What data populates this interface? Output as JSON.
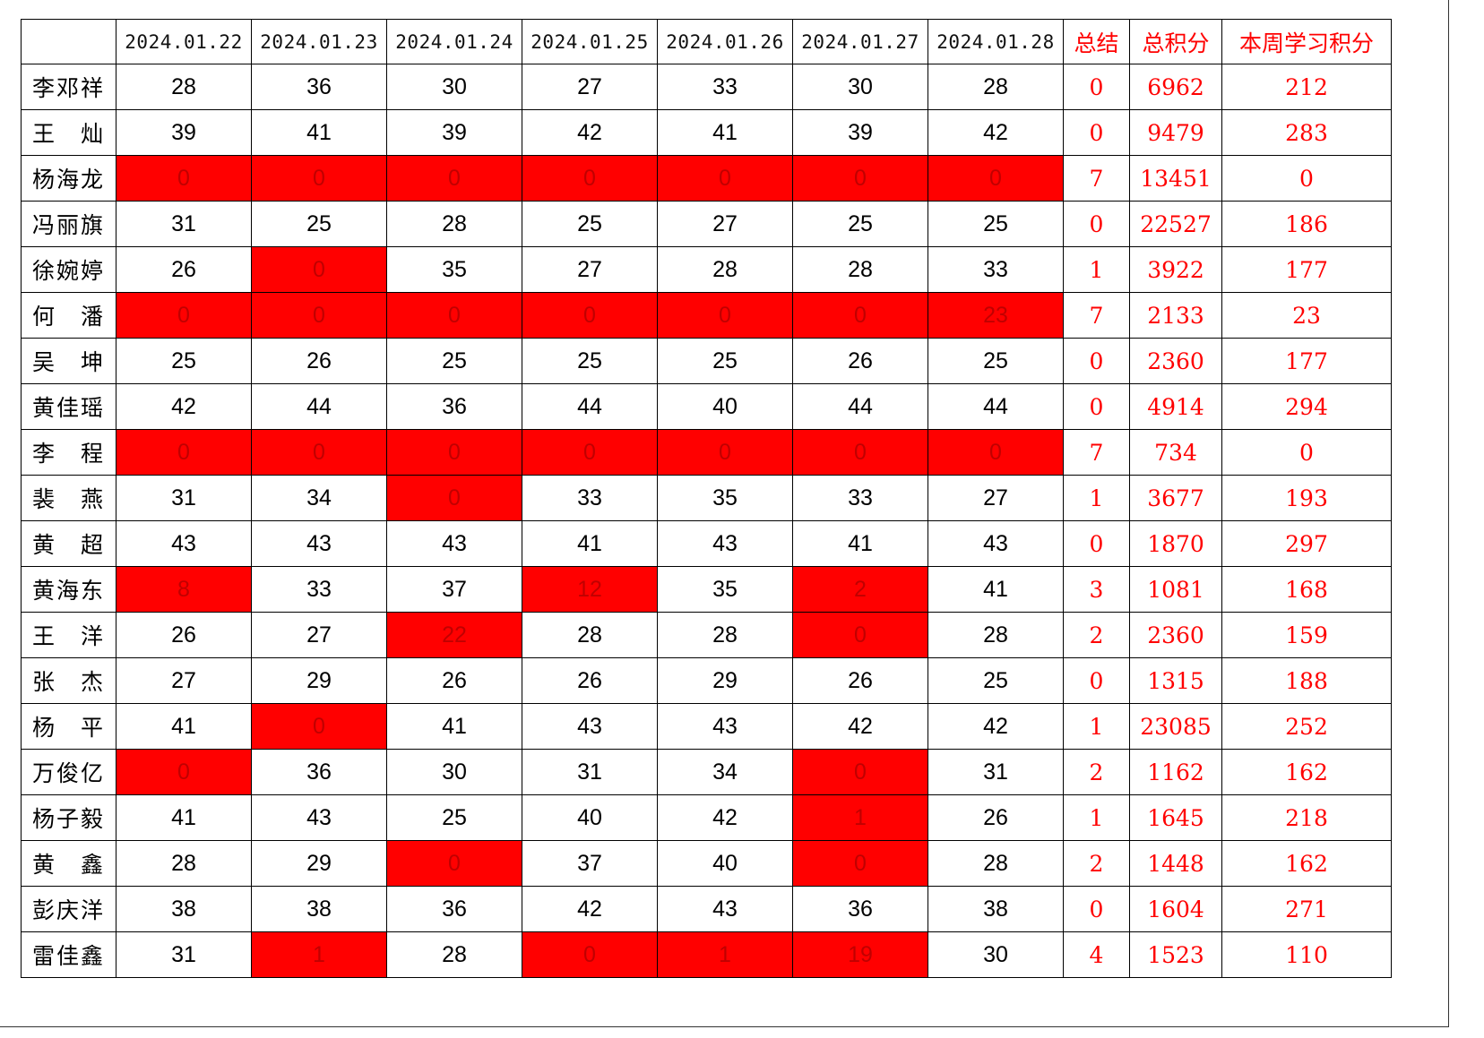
{
  "headers": {
    "dates": [
      "2024.01.22",
      "2024.01.23",
      "2024.01.24",
      "2024.01.25",
      "2024.01.26",
      "2024.01.27",
      "2024.01.28"
    ],
    "summary": "总结",
    "total": "总积分",
    "weekly": "本周学习积分"
  },
  "colors": {
    "highlight": "#ff0000",
    "accent_text": "#ff0000"
  },
  "rows": [
    {
      "name": "李邓祥",
      "days": [
        "28",
        "36",
        "30",
        "27",
        "33",
        "30",
        "28"
      ],
      "highlights": [
        false,
        false,
        false,
        false,
        false,
        false,
        false
      ],
      "summary": "0",
      "total": "6962",
      "weekly": "212"
    },
    {
      "name": "王　灿",
      "days": [
        "39",
        "41",
        "39",
        "42",
        "41",
        "39",
        "42"
      ],
      "highlights": [
        false,
        false,
        false,
        false,
        false,
        false,
        false
      ],
      "summary": "0",
      "total": "9479",
      "weekly": "283"
    },
    {
      "name": "杨海龙",
      "days": [
        "0",
        "0",
        "0",
        "0",
        "0",
        "0",
        "0"
      ],
      "highlights": [
        true,
        true,
        true,
        true,
        true,
        true,
        true
      ],
      "summary": "7",
      "total": "13451",
      "weekly": "0"
    },
    {
      "name": "冯丽旗",
      "days": [
        "31",
        "25",
        "28",
        "25",
        "27",
        "25",
        "25"
      ],
      "highlights": [
        false,
        false,
        false,
        false,
        false,
        false,
        false
      ],
      "summary": "0",
      "total": "22527",
      "weekly": "186"
    },
    {
      "name": "徐婉婷",
      "days": [
        "26",
        "0",
        "35",
        "27",
        "28",
        "28",
        "33"
      ],
      "highlights": [
        false,
        true,
        false,
        false,
        false,
        false,
        false
      ],
      "summary": "1",
      "total": "3922",
      "weekly": "177"
    },
    {
      "name": "何　潘",
      "days": [
        "0",
        "0",
        "0",
        "0",
        "0",
        "0",
        "23"
      ],
      "highlights": [
        true,
        true,
        true,
        true,
        true,
        true,
        true
      ],
      "summary": "7",
      "total": "2133",
      "weekly": "23"
    },
    {
      "name": "吴　坤",
      "days": [
        "25",
        "26",
        "25",
        "25",
        "25",
        "26",
        "25"
      ],
      "highlights": [
        false,
        false,
        false,
        false,
        false,
        false,
        false
      ],
      "summary": "0",
      "total": "2360",
      "weekly": "177"
    },
    {
      "name": "黄佳瑶",
      "days": [
        "42",
        "44",
        "36",
        "44",
        "40",
        "44",
        "44"
      ],
      "highlights": [
        false,
        false,
        false,
        false,
        false,
        false,
        false
      ],
      "summary": "0",
      "total": "4914",
      "weekly": "294"
    },
    {
      "name": "李　程",
      "days": [
        "0",
        "0",
        "0",
        "0",
        "0",
        "0",
        "0"
      ],
      "highlights": [
        true,
        true,
        true,
        true,
        true,
        true,
        true
      ],
      "summary": "7",
      "total": "734",
      "weekly": "0"
    },
    {
      "name": "裴　燕",
      "days": [
        "31",
        "34",
        "0",
        "33",
        "35",
        "33",
        "27"
      ],
      "highlights": [
        false,
        false,
        true,
        false,
        false,
        false,
        false
      ],
      "summary": "1",
      "total": "3677",
      "weekly": "193"
    },
    {
      "name": "黄　超",
      "days": [
        "43",
        "43",
        "43",
        "41",
        "43",
        "41",
        "43"
      ],
      "highlights": [
        false,
        false,
        false,
        false,
        false,
        false,
        false
      ],
      "summary": "0",
      "total": "1870",
      "weekly": "297"
    },
    {
      "name": "黄海东",
      "days": [
        "8",
        "33",
        "37",
        "12",
        "35",
        "2",
        "41"
      ],
      "highlights": [
        true,
        false,
        false,
        true,
        false,
        true,
        false
      ],
      "summary": "3",
      "total": "1081",
      "weekly": "168"
    },
    {
      "name": "王　洋",
      "days": [
        "26",
        "27",
        "22",
        "28",
        "28",
        "0",
        "28"
      ],
      "highlights": [
        false,
        false,
        true,
        false,
        false,
        true,
        false
      ],
      "summary": "2",
      "total": "2360",
      "weekly": "159"
    },
    {
      "name": "张　杰",
      "days": [
        "27",
        "29",
        "26",
        "26",
        "29",
        "26",
        "25"
      ],
      "highlights": [
        false,
        false,
        false,
        false,
        false,
        false,
        false
      ],
      "summary": "0",
      "total": "1315",
      "weekly": "188"
    },
    {
      "name": "杨　平",
      "days": [
        "41",
        "0",
        "41",
        "43",
        "43",
        "42",
        "42"
      ],
      "highlights": [
        false,
        true,
        false,
        false,
        false,
        false,
        false
      ],
      "summary": "1",
      "total": "23085",
      "weekly": "252"
    },
    {
      "name": "万俊亿",
      "days": [
        "0",
        "36",
        "30",
        "31",
        "34",
        "0",
        "31"
      ],
      "highlights": [
        true,
        false,
        false,
        false,
        false,
        true,
        false
      ],
      "summary": "2",
      "total": "1162",
      "weekly": "162"
    },
    {
      "name": "杨子毅",
      "days": [
        "41",
        "43",
        "25",
        "40",
        "42",
        "1",
        "26"
      ],
      "highlights": [
        false,
        false,
        false,
        false,
        false,
        true,
        false
      ],
      "summary": "1",
      "total": "1645",
      "weekly": "218"
    },
    {
      "name": "黄　鑫",
      "days": [
        "28",
        "29",
        "0",
        "37",
        "40",
        "0",
        "28"
      ],
      "highlights": [
        false,
        false,
        true,
        false,
        false,
        true,
        false
      ],
      "summary": "2",
      "total": "1448",
      "weekly": "162"
    },
    {
      "name": "彭庆洋",
      "days": [
        "38",
        "38",
        "36",
        "42",
        "43",
        "36",
        "38"
      ],
      "highlights": [
        false,
        false,
        false,
        false,
        false,
        false,
        false
      ],
      "summary": "0",
      "total": "1604",
      "weekly": "271"
    },
    {
      "name": "雷佳鑫",
      "days": [
        "31",
        "1",
        "28",
        "0",
        "1",
        "19",
        "30"
      ],
      "highlights": [
        false,
        true,
        false,
        true,
        true,
        true,
        false
      ],
      "summary": "4",
      "total": "1523",
      "weekly": "110"
    }
  ]
}
